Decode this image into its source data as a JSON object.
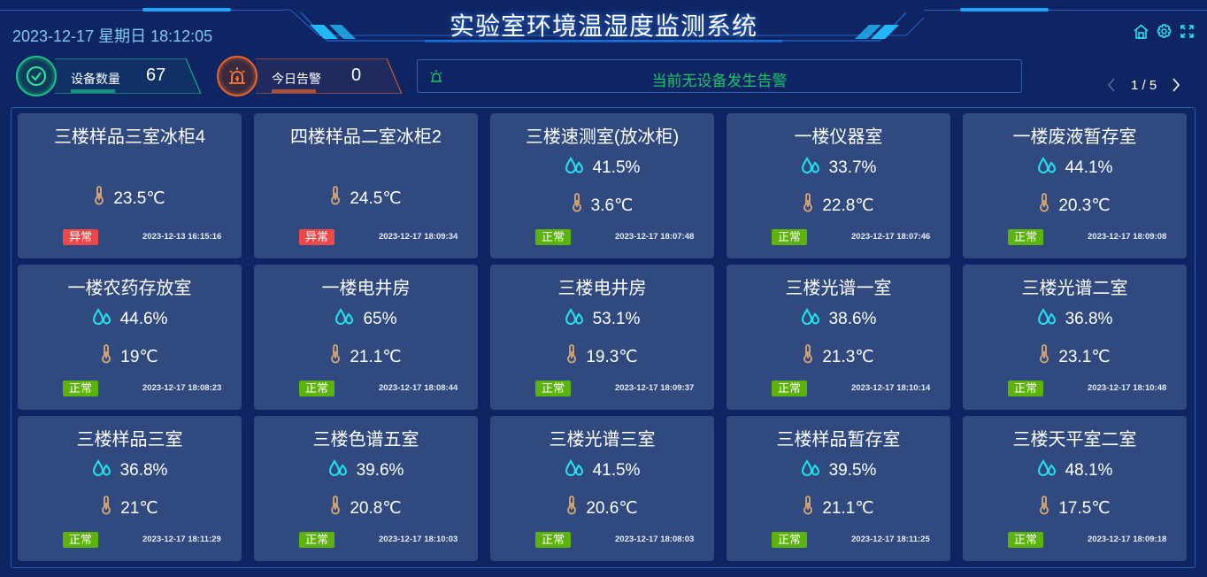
{
  "header": {
    "title": "实验室环境温湿度监测系统",
    "datetime": "2023-12-17 星期日 18:12:05",
    "icons": [
      "home-icon",
      "gear-icon",
      "fullscreen-icon"
    ]
  },
  "stats": {
    "device_label": "设备数量",
    "device_count": "67",
    "alarm_label": "今日告警",
    "alarm_count": "0"
  },
  "alarm_bar": {
    "text": "当前无设备发生告警"
  },
  "pager": {
    "text": "1 / 5"
  },
  "colors": {
    "background": "#0f2463",
    "card": "#304a80",
    "normal": "#5cb30c",
    "abnormal": "#f04848",
    "humidity_icon": "#21e3f0",
    "temp_icon": "#d9a870",
    "alarm_text": "#1ec468"
  },
  "cards": [
    {
      "name": "三楼样品三室冰柜4",
      "humidity": null,
      "temp": "23.5℃",
      "status": "异常",
      "time": "2023-12-13 16:15:16"
    },
    {
      "name": "四楼样品二室冰柜2",
      "humidity": null,
      "temp": "24.5℃",
      "status": "异常",
      "time": "2023-12-17 18:09:34"
    },
    {
      "name": "三楼速测室(放冰柜)",
      "humidity": "41.5%",
      "temp": "3.6℃",
      "status": "正常",
      "time": "2023-12-17 18:07:48"
    },
    {
      "name": "一楼仪器室",
      "humidity": "33.7%",
      "temp": "22.8℃",
      "status": "正常",
      "time": "2023-12-17 18:07:46"
    },
    {
      "name": "一楼废液暂存室",
      "humidity": "44.1%",
      "temp": "20.3℃",
      "status": "正常",
      "time": "2023-12-17 18:09:08"
    },
    {
      "name": "一楼农药存放室",
      "humidity": "44.6%",
      "temp": "19℃",
      "status": "正常",
      "time": "2023-12-17 18:08:23"
    },
    {
      "name": "一楼电井房",
      "humidity": "65%",
      "temp": "21.1℃",
      "status": "正常",
      "time": "2023-12-17 18:08:44"
    },
    {
      "name": "三楼电井房",
      "humidity": "53.1%",
      "temp": "19.3℃",
      "status": "正常",
      "time": "2023-12-17 18:09:37"
    },
    {
      "name": "三楼光谱一室",
      "humidity": "38.6%",
      "temp": "21.3℃",
      "status": "正常",
      "time": "2023-12-17 18:10:14"
    },
    {
      "name": "三楼光谱二室",
      "humidity": "36.8%",
      "temp": "23.1℃",
      "status": "正常",
      "time": "2023-12-17 18:10:48"
    },
    {
      "name": "三楼样品三室",
      "humidity": "36.8%",
      "temp": "21℃",
      "status": "正常",
      "time": "2023-12-17 18:11:29"
    },
    {
      "name": "三楼色谱五室",
      "humidity": "39.6%",
      "temp": "20.8℃",
      "status": "正常",
      "time": "2023-12-17 18:10:03"
    },
    {
      "name": "三楼光谱三室",
      "humidity": "41.5%",
      "temp": "20.6℃",
      "status": "正常",
      "time": "2023-12-17 18:08:03"
    },
    {
      "name": "三楼样品暂存室",
      "humidity": "39.5%",
      "temp": "21.1℃",
      "status": "正常",
      "time": "2023-12-17 18:11:25"
    },
    {
      "name": "三楼天平室二室",
      "humidity": "48.1%",
      "temp": "17.5℃",
      "status": "正常",
      "time": "2023-12-17 18:09:18"
    }
  ]
}
